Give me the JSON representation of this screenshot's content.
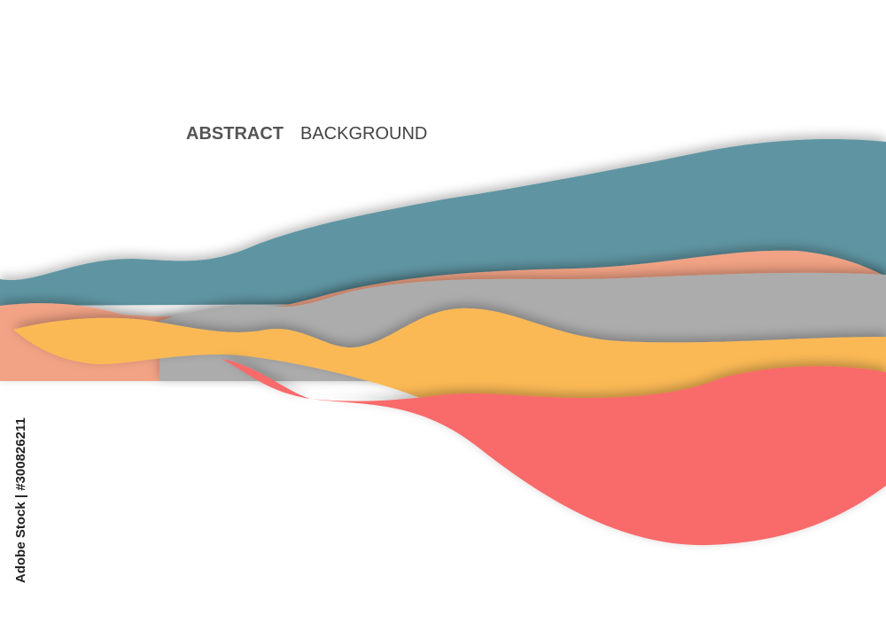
{
  "title": {
    "bold": "ABSTRACT",
    "regular": "BACKGROUND"
  },
  "watermark": {
    "id": "Adobe Stock | #300826211"
  }
}
